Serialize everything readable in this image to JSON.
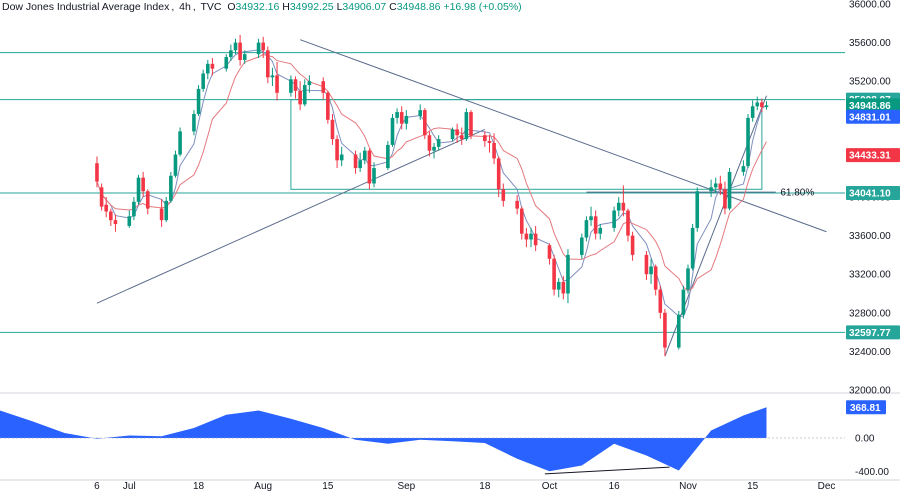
{
  "header": {
    "symbol": "Dow Jones Industrial Average Index",
    "interval": "4h",
    "source": "TVC",
    "o_key": "O",
    "o_val": "34932.16",
    "h_key": "H",
    "h_val": "34992.25",
    "l_key": "L",
    "l_val": "34906.07",
    "c_key": "C",
    "c_val": "34948.86",
    "change": "+16.98 (+0.05%)"
  },
  "chart_data": {
    "type": "candlestick",
    "colors": {
      "up": "#089981",
      "down": "#f23645",
      "ma_fast": "#7f8fbf",
      "ma_slow": "#e5797f",
      "levels": "#26a69a",
      "trendline": "#5b6b8c",
      "oscillator": "#2962ff"
    },
    "price_axis": {
      "range": [
        32000,
        36000
      ],
      "ticks": [
        32000,
        32400,
        32800,
        33200,
        33600,
        34000,
        34400,
        34800,
        35200,
        35600,
        36000
      ],
      "tick_labels": [
        "32000.00",
        "32400.00",
        "32800.00",
        "33200.00",
        "33600.00",
        "34000.00",
        "34400.00",
        "34800.00",
        "35200.00",
        "35600.00",
        "36000.00"
      ]
    },
    "time_axis": {
      "range": [
        "2023-06-05",
        "2023-12-05"
      ],
      "ticks": [
        {
          "date": "2023-06-26",
          "label": "6"
        },
        {
          "date": "2023-07-03",
          "label": "Jul"
        },
        {
          "date": "2023-07-18",
          "label": "18"
        },
        {
          "date": "2023-08-01",
          "label": "Aug"
        },
        {
          "date": "2023-08-15",
          "label": "15"
        },
        {
          "date": "2023-09-01",
          "label": "Sep"
        },
        {
          "date": "2023-09-18",
          "label": "18"
        },
        {
          "date": "2023-10-02",
          "label": "Oct"
        },
        {
          "date": "2023-10-16",
          "label": "16"
        },
        {
          "date": "2023-11-01",
          "label": "Nov"
        },
        {
          "date": "2023-11-15",
          "label": "15"
        },
        {
          "date": "2023-12-01",
          "label": "Dec"
        }
      ]
    },
    "horizontal_levels": [
      {
        "value": 35495.87,
        "label": "35495.87"
      },
      {
        "value": 35008.97,
        "label": "35008.97"
      },
      {
        "value": 34041.1,
        "label": "34041.10"
      },
      {
        "value": 32597.77,
        "label": "32597.77"
      }
    ],
    "fib_level": {
      "value": 34050,
      "label": "61.80%"
    },
    "price_badges": [
      {
        "value": 35008.97,
        "label": "35008.97",
        "color": "#26a69a"
      },
      {
        "value": 34948.86,
        "label": "34948.86",
        "color": "#089981"
      },
      {
        "value": 34831.01,
        "label": "34831.01",
        "color": "#2962ff"
      },
      {
        "value": 34433.31,
        "label": "34433.31",
        "color": "#f23645"
      },
      {
        "value": 34041.1,
        "label": "34041.10",
        "color": "#26a69a"
      },
      {
        "value": 32597.77,
        "label": "32597.77",
        "color": "#26a69a"
      }
    ],
    "trendlines": [
      {
        "x": [
          "2023-06-26",
          "2023-09-18"
        ],
        "y": [
          32900,
          34700
        ]
      },
      {
        "x": [
          "2023-08-09",
          "2023-12-01"
        ],
        "y": [
          35630,
          33640
        ]
      },
      {
        "x": [
          "2023-10-27",
          "2023-11-18"
        ],
        "y": [
          32350,
          35050
        ]
      }
    ],
    "range_box": {
      "x": [
        "2023-08-07",
        "2023-11-17"
      ],
      "y": [
        34080,
        35008.97
      ]
    },
    "candles": [
      {
        "d": "2023-06-26",
        "o": 34350,
        "h": 34420,
        "c": 34160,
        "l": 34100
      },
      {
        "d": "2023-06-27",
        "o": 34100,
        "h": 34140,
        "c": 33900,
        "l": 33860
      },
      {
        "d": "2023-06-28",
        "o": 33920,
        "h": 34000,
        "c": 33850,
        "l": 33790
      },
      {
        "d": "2023-06-29",
        "o": 33850,
        "h": 33880,
        "c": 33760,
        "l": 33700
      },
      {
        "d": "2023-06-30",
        "o": 33760,
        "h": 33820,
        "c": 33720,
        "l": 33640
      },
      {
        "d": "2023-07-03",
        "o": 33700,
        "h": 33860,
        "c": 33800,
        "l": 33680
      },
      {
        "d": "2023-07-04",
        "o": 33800,
        "h": 34000,
        "c": 33950,
        "l": 33760
      },
      {
        "d": "2023-07-05",
        "o": 33950,
        "h": 34230,
        "c": 34200,
        "l": 33920
      },
      {
        "d": "2023-07-06",
        "o": 34200,
        "h": 34260,
        "c": 34060,
        "l": 34000
      },
      {
        "d": "2023-07-07",
        "o": 34060,
        "h": 34080,
        "c": 33880,
        "l": 33820
      },
      {
        "d": "2023-07-10",
        "o": 33880,
        "h": 33980,
        "c": 33760,
        "l": 33690
      },
      {
        "d": "2023-07-11",
        "o": 33760,
        "h": 34000,
        "c": 33960,
        "l": 33740
      },
      {
        "d": "2023-07-12",
        "o": 33960,
        "h": 34260,
        "c": 34220,
        "l": 33940
      },
      {
        "d": "2023-07-13",
        "o": 34220,
        "h": 34480,
        "c": 34440,
        "l": 34200
      },
      {
        "d": "2023-07-14",
        "o": 34440,
        "h": 34720,
        "c": 34680,
        "l": 34420
      },
      {
        "d": "2023-07-17",
        "o": 34680,
        "h": 34900,
        "c": 34860,
        "l": 34640
      },
      {
        "d": "2023-07-18",
        "o": 34860,
        "h": 35160,
        "c": 35120,
        "l": 34840
      },
      {
        "d": "2023-07-19",
        "o": 35120,
        "h": 35320,
        "c": 35280,
        "l": 35090
      },
      {
        "d": "2023-07-20",
        "o": 35280,
        "h": 35420,
        "c": 35380,
        "l": 35220
      },
      {
        "d": "2023-07-21",
        "o": 35380,
        "h": 35440,
        "c": 35330,
        "l": 35260
      },
      {
        "d": "2023-07-24",
        "o": 35330,
        "h": 35480,
        "c": 35450,
        "l": 35300
      },
      {
        "d": "2023-07-25",
        "o": 35450,
        "h": 35580,
        "c": 35520,
        "l": 35410
      },
      {
        "d": "2023-07-26",
        "o": 35520,
        "h": 35640,
        "c": 35600,
        "l": 35480
      },
      {
        "d": "2023-07-27",
        "o": 35600,
        "h": 35680,
        "c": 35420,
        "l": 35360
      },
      {
        "d": "2023-07-28",
        "o": 35420,
        "h": 35520,
        "c": 35480,
        "l": 35380
      },
      {
        "d": "2023-07-31",
        "o": 35480,
        "h": 35640,
        "c": 35600,
        "l": 35440
      },
      {
        "d": "2023-08-01",
        "o": 35600,
        "h": 35660,
        "c": 35520,
        "l": 35440
      },
      {
        "d": "2023-08-02",
        "o": 35520,
        "h": 35560,
        "c": 35240,
        "l": 35180
      },
      {
        "d": "2023-08-03",
        "o": 35240,
        "h": 35340,
        "c": 35260,
        "l": 35150
      },
      {
        "d": "2023-08-04",
        "o": 35260,
        "h": 35400,
        "c": 35080,
        "l": 35000
      },
      {
        "d": "2023-08-07",
        "o": 35080,
        "h": 35260,
        "c": 35220,
        "l": 35040
      },
      {
        "d": "2023-08-08",
        "o": 35220,
        "h": 35250,
        "c": 35100,
        "l": 35020
      },
      {
        "d": "2023-08-09",
        "o": 35100,
        "h": 35200,
        "c": 34960,
        "l": 34900
      },
      {
        "d": "2023-08-10",
        "o": 34960,
        "h": 35220,
        "c": 35160,
        "l": 34940
      },
      {
        "d": "2023-08-11",
        "o": 35160,
        "h": 35260,
        "c": 35200,
        "l": 35080
      },
      {
        "d": "2023-08-14",
        "o": 35200,
        "h": 35240,
        "c": 35080,
        "l": 35010
      },
      {
        "d": "2023-08-15",
        "o": 35080,
        "h": 35100,
        "c": 34800,
        "l": 34760
      },
      {
        "d": "2023-08-16",
        "o": 34800,
        "h": 34860,
        "c": 34600,
        "l": 34540
      },
      {
        "d": "2023-08-17",
        "o": 34600,
        "h": 34640,
        "c": 34380,
        "l": 34300
      },
      {
        "d": "2023-08-18",
        "o": 34380,
        "h": 34520,
        "c": 34440,
        "l": 34320
      },
      {
        "d": "2023-08-21",
        "o": 34440,
        "h": 34480,
        "c": 34300,
        "l": 34240
      },
      {
        "d": "2023-08-22",
        "o": 34300,
        "h": 34460,
        "c": 34380,
        "l": 34260
      },
      {
        "d": "2023-08-23",
        "o": 34380,
        "h": 34520,
        "c": 34480,
        "l": 34340
      },
      {
        "d": "2023-08-24",
        "o": 34480,
        "h": 34500,
        "c": 34140,
        "l": 34080
      },
      {
        "d": "2023-08-25",
        "o": 34140,
        "h": 34360,
        "c": 34300,
        "l": 34100
      },
      {
        "d": "2023-08-28",
        "o": 34300,
        "h": 34580,
        "c": 34540,
        "l": 34280
      },
      {
        "d": "2023-08-29",
        "o": 34540,
        "h": 34860,
        "c": 34820,
        "l": 34520
      },
      {
        "d": "2023-08-30",
        "o": 34820,
        "h": 34920,
        "c": 34880,
        "l": 34760
      },
      {
        "d": "2023-08-31",
        "o": 34880,
        "h": 34940,
        "c": 34760,
        "l": 34700
      },
      {
        "d": "2023-09-01",
        "o": 34760,
        "h": 34900,
        "c": 34840,
        "l": 34700
      },
      {
        "d": "2023-09-04",
        "o": 34840,
        "h": 34960,
        "c": 34900,
        "l": 34800
      },
      {
        "d": "2023-09-05",
        "o": 34900,
        "h": 34920,
        "c": 34640,
        "l": 34600
      },
      {
        "d": "2023-09-06",
        "o": 34640,
        "h": 34680,
        "c": 34480,
        "l": 34420
      },
      {
        "d": "2023-09-07",
        "o": 34480,
        "h": 34560,
        "c": 34520,
        "l": 34400
      },
      {
        "d": "2023-09-08",
        "o": 34520,
        "h": 34640,
        "c": 34600,
        "l": 34480
      },
      {
        "d": "2023-09-11",
        "o": 34600,
        "h": 34720,
        "c": 34700,
        "l": 34580
      },
      {
        "d": "2023-09-12",
        "o": 34700,
        "h": 34760,
        "c": 34640,
        "l": 34560
      },
      {
        "d": "2023-09-13",
        "o": 34640,
        "h": 34720,
        "c": 34600,
        "l": 34540
      },
      {
        "d": "2023-09-14",
        "o": 34600,
        "h": 34920,
        "c": 34880,
        "l": 34580
      },
      {
        "d": "2023-09-15",
        "o": 34880,
        "h": 34900,
        "c": 34640,
        "l": 34600
      },
      {
        "d": "2023-09-18",
        "o": 34640,
        "h": 34680,
        "c": 34580,
        "l": 34520
      },
      {
        "d": "2023-09-19",
        "o": 34580,
        "h": 34640,
        "c": 34560,
        "l": 34460
      },
      {
        "d": "2023-09-20",
        "o": 34560,
        "h": 34660,
        "c": 34400,
        "l": 34340
      },
      {
        "d": "2023-09-21",
        "o": 34400,
        "h": 34420,
        "c": 34080,
        "l": 34000
      },
      {
        "d": "2023-09-22",
        "o": 34080,
        "h": 34140,
        "c": 33960,
        "l": 33900
      },
      {
        "d": "2023-09-25",
        "o": 33960,
        "h": 34020,
        "c": 33880,
        "l": 33820
      },
      {
        "d": "2023-09-26",
        "o": 33880,
        "h": 33900,
        "c": 33620,
        "l": 33560
      },
      {
        "d": "2023-09-27",
        "o": 33620,
        "h": 33680,
        "c": 33560,
        "l": 33480
      },
      {
        "d": "2023-09-28",
        "o": 33560,
        "h": 33680,
        "c": 33620,
        "l": 33480
      },
      {
        "d": "2023-09-29",
        "o": 33620,
        "h": 33700,
        "c": 33500,
        "l": 33440
      },
      {
        "d": "2023-10-02",
        "o": 33500,
        "h": 33520,
        "c": 33360,
        "l": 33300
      },
      {
        "d": "2023-10-03",
        "o": 33360,
        "h": 33400,
        "c": 33040,
        "l": 32980
      },
      {
        "d": "2023-10-04",
        "o": 33040,
        "h": 33160,
        "c": 33120,
        "l": 32960
      },
      {
        "d": "2023-10-05",
        "o": 33120,
        "h": 33180,
        "c": 33000,
        "l": 32940
      },
      {
        "d": "2023-10-06",
        "o": 33000,
        "h": 33460,
        "c": 33400,
        "l": 32900
      },
      {
        "d": "2023-10-09",
        "o": 33400,
        "h": 33620,
        "c": 33580,
        "l": 33360
      },
      {
        "d": "2023-10-10",
        "o": 33580,
        "h": 33800,
        "c": 33760,
        "l": 33540
      },
      {
        "d": "2023-10-11",
        "o": 33760,
        "h": 33900,
        "c": 33800,
        "l": 33700
      },
      {
        "d": "2023-10-12",
        "o": 33800,
        "h": 33860,
        "c": 33620,
        "l": 33560
      },
      {
        "d": "2023-10-13",
        "o": 33620,
        "h": 33720,
        "c": 33680,
        "l": 33560
      },
      {
        "d": "2023-10-16",
        "o": 33680,
        "h": 33900,
        "c": 33860,
        "l": 33640
      },
      {
        "d": "2023-10-17",
        "o": 33860,
        "h": 34000,
        "c": 33940,
        "l": 33800
      },
      {
        "d": "2023-10-18",
        "o": 33940,
        "h": 34120,
        "c": 33860,
        "l": 33800
      },
      {
        "d": "2023-10-19",
        "o": 33860,
        "h": 33880,
        "c": 33600,
        "l": 33540
      },
      {
        "d": "2023-10-20",
        "o": 33600,
        "h": 33640,
        "c": 33400,
        "l": 33340
      },
      {
        "d": "2023-10-23",
        "o": 33400,
        "h": 33440,
        "c": 33200,
        "l": 33140
      },
      {
        "d": "2023-10-24",
        "o": 33200,
        "h": 33360,
        "c": 33280,
        "l": 33100
      },
      {
        "d": "2023-10-25",
        "o": 33280,
        "h": 33300,
        "c": 33040,
        "l": 32980
      },
      {
        "d": "2023-10-26",
        "o": 33040,
        "h": 33080,
        "c": 32800,
        "l": 32740
      },
      {
        "d": "2023-10-27",
        "o": 32800,
        "h": 32840,
        "c": 32440,
        "l": 32350
      },
      {
        "d": "2023-10-30",
        "o": 32440,
        "h": 32820,
        "c": 32780,
        "l": 32420
      },
      {
        "d": "2023-10-31",
        "o": 32780,
        "h": 33080,
        "c": 33040,
        "l": 32740
      },
      {
        "d": "2023-11-01",
        "o": 33040,
        "h": 33300,
        "c": 33260,
        "l": 33000
      },
      {
        "d": "2023-11-02",
        "o": 33260,
        "h": 33720,
        "c": 33680,
        "l": 33240
      },
      {
        "d": "2023-11-03",
        "o": 33680,
        "h": 34100,
        "c": 34060,
        "l": 33640
      },
      {
        "d": "2023-11-06",
        "o": 34060,
        "h": 34180,
        "c": 34100,
        "l": 34000
      },
      {
        "d": "2023-11-07",
        "o": 34100,
        "h": 34200,
        "c": 34140,
        "l": 34040
      },
      {
        "d": "2023-11-08",
        "o": 34140,
        "h": 34220,
        "c": 34080,
        "l": 34020
      },
      {
        "d": "2023-11-09",
        "o": 34080,
        "h": 34160,
        "c": 33880,
        "l": 33820
      },
      {
        "d": "2023-11-10",
        "o": 33880,
        "h": 34300,
        "c": 34260,
        "l": 33860
      },
      {
        "d": "2023-11-13",
        "o": 34260,
        "h": 34380,
        "c": 34320,
        "l": 34220
      },
      {
        "d": "2023-11-14",
        "o": 34320,
        "h": 34860,
        "c": 34820,
        "l": 34300
      },
      {
        "d": "2023-11-15",
        "o": 34820,
        "h": 35000,
        "c": 34940,
        "l": 34780
      },
      {
        "d": "2023-11-16",
        "o": 34940,
        "h": 35040,
        "c": 34980,
        "l": 34900
      },
      {
        "d": "2023-11-17",
        "o": 34980,
        "h": 35020,
        "c": 34932,
        "l": 34880
      },
      {
        "d": "2023-11-18",
        "o": 34932.16,
        "h": 34992.25,
        "c": 34948.86,
        "l": 34906.07
      }
    ],
    "oscillator": {
      "last_value": 368.81,
      "last_label": "368.81",
      "axis_ticks": [
        0,
        -400
      ],
      "axis_labels": [
        "0.00",
        "-400.00"
      ],
      "points": [
        {
          "d": "2023-06-05",
          "v": 330
        },
        {
          "d": "2023-06-12",
          "v": 200
        },
        {
          "d": "2023-06-19",
          "v": 60
        },
        {
          "d": "2023-06-26",
          "v": -10
        },
        {
          "d": "2023-07-03",
          "v": 30
        },
        {
          "d": "2023-07-10",
          "v": 20
        },
        {
          "d": "2023-07-17",
          "v": 120
        },
        {
          "d": "2023-07-24",
          "v": 280
        },
        {
          "d": "2023-07-31",
          "v": 330
        },
        {
          "d": "2023-08-07",
          "v": 230
        },
        {
          "d": "2023-08-14",
          "v": 120
        },
        {
          "d": "2023-08-21",
          "v": -20
        },
        {
          "d": "2023-08-28",
          "v": -70
        },
        {
          "d": "2023-09-04",
          "v": -20
        },
        {
          "d": "2023-09-11",
          "v": -40
        },
        {
          "d": "2023-09-18",
          "v": -60
        },
        {
          "d": "2023-09-25",
          "v": -250
        },
        {
          "d": "2023-10-02",
          "v": -400
        },
        {
          "d": "2023-10-09",
          "v": -330
        },
        {
          "d": "2023-10-16",
          "v": -70
        },
        {
          "d": "2023-10-23",
          "v": -210
        },
        {
          "d": "2023-10-30",
          "v": -390
        },
        {
          "d": "2023-11-06",
          "v": 90
        },
        {
          "d": "2023-11-13",
          "v": 270
        },
        {
          "d": "2023-11-18",
          "v": 370
        }
      ],
      "divergence_line": {
        "x": [
          "2023-10-01",
          "2023-10-28"
        ],
        "y": [
          -430,
          -350
        ]
      }
    }
  }
}
